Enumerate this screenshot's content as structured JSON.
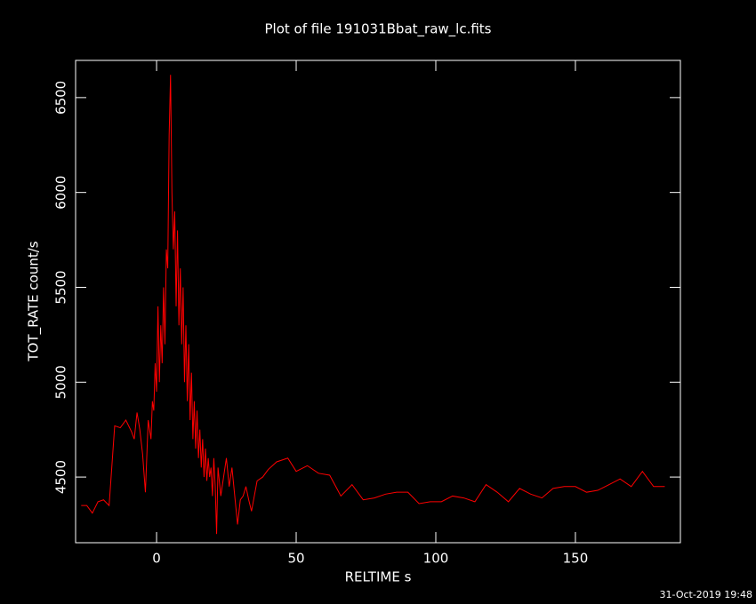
{
  "chart_data": {
    "type": "line",
    "title": "Plot of file 191031Bbat_raw_lc.fits",
    "x_label": "RELTIME  s",
    "y_label": "TOT_RATE  count/s",
    "timestamp": "31-Oct-2019 19:48",
    "color": "#ff0000",
    "xlim": [
      -29,
      187.6
    ],
    "ylim": [
      4154,
      6696
    ],
    "xticks": [
      0,
      50,
      100,
      150
    ],
    "yticks": [
      4500,
      5000,
      5500,
      6000,
      6500
    ],
    "x": [
      -27,
      -25,
      -23,
      -21,
      -19,
      -17,
      -15,
      -13,
      -11,
      -9,
      -8,
      -7,
      -6,
      -5,
      -4,
      -3,
      -2,
      -1.5,
      -1,
      -0.5,
      0,
      0.5,
      1,
      1.5,
      2,
      2.5,
      3,
      3.5,
      4,
      4.5,
      5,
      5.5,
      6,
      6.5,
      7,
      7.5,
      8,
      8.5,
      9,
      9.5,
      10,
      10.5,
      11,
      11.5,
      12,
      12.5,
      13,
      13.5,
      14,
      14.5,
      15,
      15.5,
      16,
      16.5,
      17,
      17.5,
      18,
      18.5,
      19,
      19.5,
      20,
      20.5,
      21,
      21.5,
      22,
      23,
      24,
      25,
      26,
      27,
      28,
      29,
      30,
      31,
      32,
      33,
      34,
      36,
      38,
      40,
      43,
      47,
      50,
      54,
      58,
      62,
      66,
      70,
      74,
      78,
      82,
      86,
      90,
      94,
      98,
      102,
      106,
      110,
      114,
      118,
      122,
      126,
      130,
      134,
      138,
      142,
      146,
      150,
      154,
      158,
      162,
      166,
      170,
      174,
      178,
      182
    ],
    "values": [
      4350,
      4350,
      4310,
      4370,
      4380,
      4350,
      4770,
      4760,
      4800,
      4740,
      4700,
      4840,
      4750,
      4620,
      4420,
      4800,
      4700,
      4900,
      4850,
      5100,
      4950,
      5400,
      5000,
      5300,
      5100,
      5500,
      5200,
      5700,
      5600,
      6300,
      6620,
      6000,
      5700,
      5900,
      5400,
      5800,
      5300,
      5600,
      5200,
      5500,
      5000,
      5300,
      4900,
      5200,
      4800,
      5050,
      4700,
      4900,
      4650,
      4850,
      4600,
      4750,
      4550,
      4700,
      4500,
      4650,
      4480,
      4600,
      4500,
      4550,
      4400,
      4600,
      4450,
      4200,
      4550,
      4400,
      4500,
      4600,
      4450,
      4550,
      4400,
      4250,
      4380,
      4400,
      4450,
      4380,
      4320,
      4480,
      4500,
      4540,
      4580,
      4600,
      4530,
      4560,
      4520,
      4510,
      4400,
      4460,
      4380,
      4390,
      4410,
      4420,
      4420,
      4360,
      4370,
      4370,
      4400,
      4390,
      4370,
      4460,
      4420,
      4370,
      4440,
      4410,
      4390,
      4440,
      4450,
      4450,
      4420,
      4430,
      4460,
      4490,
      4450,
      4530,
      4450,
      4450
    ]
  }
}
